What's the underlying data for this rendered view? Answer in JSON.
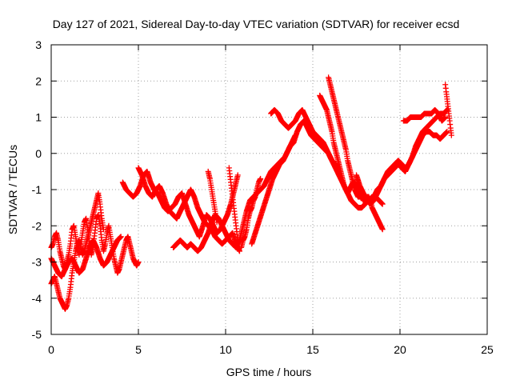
{
  "chart_data": {
    "type": "scatter",
    "title": "Day 127 of 2021, Sidereal Day-to-day VTEC variation (SDTVAR) for receiver ecsd",
    "xlabel": "GPS time / hours",
    "ylabel": "SDTVAR / TECUs",
    "xlim": [
      0,
      25
    ],
    "ylim": [
      -5,
      3
    ],
    "xticks": [
      "0",
      "5",
      "10",
      "15",
      "20",
      "25"
    ],
    "yticks": [
      "-5",
      "-4",
      "-3",
      "-2",
      "-1",
      "0",
      "1",
      "2",
      "3"
    ],
    "grid": true,
    "marker": "+",
    "color": "#ff0000",
    "series": [
      {
        "x": [
          0.0,
          0.1,
          0.2,
          0.3,
          0.4,
          0.5,
          0.6,
          0.7,
          0.8,
          0.9,
          1.0,
          1.1,
          1.2,
          1.3,
          1.4,
          1.5,
          1.6,
          1.7,
          1.8,
          1.9,
          2.0,
          2.1,
          2.2,
          2.3,
          2.4,
          2.5,
          2.6,
          2.7,
          2.8,
          2.9,
          3.0,
          3.1,
          3.2,
          3.3,
          3.4,
          3.5,
          3.6,
          3.7,
          3.8,
          3.9,
          4.0,
          4.1,
          4.2,
          4.3,
          4.4,
          4.5,
          4.6,
          4.7,
          4.8,
          4.9,
          5.0
        ],
        "y": [
          -2.6,
          -2.5,
          -2.3,
          -2.2,
          -2.4,
          -2.7,
          -2.9,
          -3.1,
          -3.2,
          -3.0,
          -2.8,
          -2.5,
          -2.1,
          -2.0,
          -2.3,
          -2.6,
          -2.8,
          -2.5,
          -2.2,
          -1.9,
          -1.8,
          -2.1,
          -2.5,
          -2.8,
          -2.6,
          -2.2,
          -1.8,
          -1.7,
          -2.0,
          -2.4,
          -2.7,
          -2.5,
          -2.2,
          -2.0,
          -2.3,
          -2.6,
          -2.9,
          -3.1,
          -3.3,
          -3.2,
          -3.0,
          -2.8,
          -2.6,
          -2.4,
          -2.3,
          -2.5,
          -2.7,
          -2.9,
          -3.0,
          -3.1,
          -3.0
        ]
      },
      {
        "x": [
          0.0,
          0.1,
          0.2,
          0.3,
          0.4,
          0.5,
          0.6,
          0.7,
          0.8,
          0.9,
          1.0,
          1.1,
          1.2,
          1.3,
          1.4,
          1.5,
          1.6,
          1.7,
          1.8,
          1.9,
          2.0,
          2.1,
          2.2,
          2.3,
          2.4,
          2.5,
          2.6,
          2.7,
          2.8,
          2.9,
          3.0
        ],
        "y": [
          -3.6,
          -3.5,
          -3.4,
          -3.6,
          -3.8,
          -4.0,
          -4.1,
          -4.2,
          -4.3,
          -4.2,
          -4.0,
          -3.7,
          -3.3,
          -3.0,
          -2.7,
          -2.5,
          -2.4,
          -2.6,
          -2.8,
          -2.7,
          -2.5,
          -2.3,
          -2.1,
          -1.9,
          -1.7,
          -1.5,
          -1.3,
          -1.1,
          -1.4,
          -1.8,
          -2.1
        ]
      },
      {
        "x": [
          0.0,
          0.2,
          0.4,
          0.6,
          0.8,
          1.0,
          1.2,
          1.4,
          1.6,
          1.8,
          2.0,
          2.2,
          2.4,
          2.6,
          2.8,
          3.0,
          3.2,
          3.4,
          3.6,
          3.8,
          4.0
        ],
        "y": [
          -2.9,
          -3.1,
          -3.3,
          -3.4,
          -3.2,
          -3.0,
          -2.9,
          -3.1,
          -3.3,
          -3.2,
          -2.9,
          -2.6,
          -2.4,
          -2.6,
          -2.9,
          -3.1,
          -3.0,
          -2.8,
          -2.6,
          -2.4,
          -2.3
        ]
      },
      {
        "x": [
          4.1,
          4.3,
          4.5,
          4.7,
          4.9,
          5.1,
          5.3,
          5.5,
          5.7,
          5.9,
          6.1,
          6.3,
          6.5,
          6.7,
          6.9,
          7.1,
          7.3,
          7.5,
          7.7,
          7.9,
          8.1,
          8.3,
          8.5,
          8.7,
          8.9,
          9.1,
          9.3,
          9.5,
          9.7,
          9.9,
          10.1,
          10.3,
          10.5,
          10.7
        ],
        "y": [
          -0.8,
          -1.0,
          -1.1,
          -1.2,
          -1.1,
          -0.9,
          -0.6,
          -0.5,
          -0.8,
          -1.0,
          -1.1,
          -1.3,
          -1.5,
          -1.6,
          -1.5,
          -1.4,
          -1.2,
          -1.1,
          -1.4,
          -1.7,
          -1.9,
          -2.1,
          -2.3,
          -2.0,
          -1.7,
          -1.8,
          -2.0,
          -2.2,
          -2.1,
          -1.9,
          -1.7,
          -1.4,
          -1.0,
          -0.6
        ]
      },
      {
        "x": [
          5.0,
          5.2,
          5.4,
          5.6,
          5.8,
          6.0,
          6.2,
          6.4,
          6.6,
          6.8,
          7.0,
          7.2,
          7.4,
          7.6,
          7.8,
          8.0,
          8.2,
          8.4,
          8.6,
          8.8,
          9.0,
          9.2,
          9.4,
          9.6,
          9.8,
          10.0,
          10.2,
          10.4,
          10.6,
          10.8
        ],
        "y": [
          -0.4,
          -0.6,
          -0.9,
          -1.1,
          -1.2,
          -1.0,
          -0.9,
          -1.1,
          -1.4,
          -1.6,
          -1.7,
          -1.8,
          -1.6,
          -1.4,
          -1.2,
          -1.0,
          -1.2,
          -1.5,
          -1.7,
          -1.9,
          -2.0,
          -2.1,
          -2.3,
          -2.4,
          -2.5,
          -2.4,
          -2.3,
          -2.2,
          -2.5,
          -2.7
        ]
      },
      {
        "x": [
          7.0,
          7.2,
          7.4,
          7.6,
          7.8,
          8.0,
          8.2,
          8.4,
          8.6,
          8.8,
          9.0,
          9.2,
          9.4,
          9.6,
          9.8,
          10.0,
          10.2,
          10.4,
          10.6,
          10.8,
          11.0,
          11.2,
          11.4,
          11.6,
          11.8,
          12.0,
          12.2,
          12.4,
          12.6,
          12.8,
          13.0,
          13.2,
          13.4,
          13.6,
          13.8,
          14.0
        ],
        "y": [
          -2.6,
          -2.5,
          -2.4,
          -2.5,
          -2.6,
          -2.5,
          -2.6,
          -2.7,
          -2.6,
          -2.4,
          -2.2,
          -1.9,
          -1.7,
          -1.8,
          -2.0,
          -2.2,
          -2.4,
          -2.5,
          -2.6,
          -2.4,
          -2.0,
          -1.6,
          -1.3,
          -1.2,
          -1.1,
          -1.0,
          -0.9,
          -0.7,
          -0.5,
          -0.4,
          -0.3,
          -0.2,
          -0.1,
          0.1,
          0.3,
          0.5
        ]
      },
      {
        "x": [
          9.0,
          9.1,
          9.2,
          9.3,
          9.4,
          9.5
        ],
        "y": [
          -0.5,
          -0.7,
          -1.0,
          -1.3,
          -1.6,
          -1.9
        ]
      },
      {
        "x": [
          10.2,
          10.3,
          10.4,
          10.5,
          10.6,
          10.7
        ],
        "y": [
          -0.4,
          -0.8,
          -1.2,
          -1.6,
          -2.0,
          -2.4
        ]
      },
      {
        "x": [
          10.9,
          11.0,
          11.1,
          11.2,
          11.3,
          11.4,
          11.5,
          11.6,
          11.7,
          11.8,
          11.9,
          12.0
        ],
        "y": [
          -2.6,
          -2.4,
          -2.3,
          -2.1,
          -1.8,
          -1.6,
          -1.5,
          -1.3,
          -1.2,
          -1.0,
          -0.8,
          -0.7
        ]
      },
      {
        "x": [
          11.5,
          11.7,
          11.9,
          12.1,
          12.3,
          12.5,
          12.7,
          12.9,
          13.1,
          13.3,
          13.5,
          13.7,
          13.9,
          14.1,
          14.3,
          14.5,
          14.7,
          14.9,
          15.1,
          15.3,
          15.5,
          15.7,
          15.9,
          16.1,
          16.3,
          16.5
        ],
        "y": [
          -2.5,
          -2.2,
          -1.9,
          -1.6,
          -1.3,
          -1.0,
          -0.7,
          -0.5,
          -0.3,
          -0.2,
          0.0,
          0.2,
          0.3,
          0.6,
          0.8,
          0.9,
          0.7,
          0.5,
          0.4,
          0.3,
          0.2,
          0.1,
          0.0,
          -0.2,
          -0.3,
          -0.6
        ]
      },
      {
        "x": [
          12.6,
          12.8,
          13.0,
          13.2,
          13.4,
          13.6,
          13.8,
          14.0,
          14.2,
          14.4,
          14.6,
          14.8,
          15.0,
          15.2,
          15.4,
          15.6,
          15.8,
          16.0,
          16.2,
          16.4,
          16.6,
          16.8,
          17.0,
          17.2,
          17.4,
          17.6,
          17.8,
          18.0,
          18.2,
          18.4,
          18.6,
          18.8,
          19.0
        ],
        "y": [
          1.1,
          1.2,
          1.1,
          0.9,
          0.8,
          0.7,
          0.8,
          0.9,
          1.1,
          1.2,
          1.0,
          0.8,
          0.6,
          0.5,
          0.4,
          0.3,
          0.1,
          -0.1,
          -0.3,
          -0.5,
          -0.7,
          -0.9,
          -1.1,
          -1.3,
          -1.4,
          -1.5,
          -1.5,
          -1.4,
          -1.3,
          -1.2,
          -1.2,
          -1.3,
          -1.4
        ]
      },
      {
        "x": [
          15.4,
          15.5,
          15.6,
          15.7,
          15.8,
          15.9,
          16.0,
          16.1,
          16.2,
          16.3,
          16.4,
          16.5,
          16.6,
          16.7,
          16.8,
          16.9,
          17.0,
          17.1,
          17.2,
          17.3,
          17.4,
          17.5,
          17.6,
          17.7,
          17.8,
          17.9,
          18.0,
          18.1,
          18.2,
          18.3,
          18.4,
          18.5,
          18.6,
          18.7,
          18.8,
          18.9,
          19.0
        ],
        "y": [
          1.6,
          1.5,
          1.4,
          1.3,
          1.2,
          1.0,
          0.8,
          0.6,
          0.3,
          0.1,
          -0.1,
          -0.3,
          -0.5,
          -0.7,
          -0.9,
          -1.0,
          -1.1,
          -1.0,
          -0.9,
          -0.8,
          -0.8,
          -0.9,
          -1.0,
          -1.1,
          -1.2,
          -1.3,
          -1.3,
          -1.2,
          -1.2,
          -1.3,
          -1.5,
          -1.6,
          -1.7,
          -1.8,
          -1.9,
          -2.0,
          -2.1
        ]
      },
      {
        "x": [
          15.9,
          16.0,
          16.1,
          16.2,
          16.3,
          16.4,
          16.5,
          16.6,
          16.7,
          16.8,
          16.9,
          17.0,
          17.1,
          17.2,
          17.3,
          17.4,
          17.5,
          17.6,
          17.7,
          17.8
        ],
        "y": [
          2.1,
          1.9,
          1.7,
          1.5,
          1.3,
          1.1,
          0.9,
          0.7,
          0.5,
          0.3,
          0.1,
          -0.2,
          -0.4,
          -0.6,
          -0.8,
          -1.0,
          -1.1,
          -1.2,
          -1.2,
          -1.1
        ]
      },
      {
        "x": [
          17.5,
          17.7,
          17.9,
          18.1,
          18.3,
          18.5,
          18.7,
          18.9,
          19.1,
          19.3,
          19.5,
          19.7,
          19.9,
          20.1,
          20.3,
          20.5,
          20.7,
          20.9,
          21.1,
          21.3,
          21.5,
          21.7,
          21.9,
          22.1,
          22.3,
          22.5,
          22.7
        ],
        "y": [
          -0.6,
          -0.9,
          -1.1,
          -1.3,
          -1.4,
          -1.3,
          -1.1,
          -0.9,
          -0.7,
          -0.6,
          -0.5,
          -0.4,
          -0.3,
          -0.4,
          -0.5,
          -0.3,
          -0.1,
          0.2,
          0.4,
          0.6,
          0.7,
          0.8,
          0.9,
          1.0,
          1.1,
          1.1,
          1.2
        ]
      },
      {
        "x": [
          18.5,
          18.7,
          18.9,
          19.1,
          19.3,
          19.5,
          19.7,
          19.9,
          20.1,
          20.3,
          20.5,
          20.7,
          20.9,
          21.1,
          21.3,
          21.5,
          21.7,
          21.9,
          22.1,
          22.3,
          22.5,
          22.7
        ],
        "y": [
          -1.2,
          -1.0,
          -0.9,
          -0.7,
          -0.5,
          -0.4,
          -0.3,
          -0.2,
          -0.3,
          -0.4,
          -0.3,
          -0.1,
          0.1,
          0.3,
          0.5,
          0.6,
          0.6,
          0.5,
          0.5,
          0.4,
          0.5,
          0.6
        ]
      },
      {
        "x": [
          20.2,
          20.4,
          20.6,
          20.8,
          21.0,
          21.2,
          21.4,
          21.6,
          21.8,
          22.0,
          22.2,
          22.4,
          22.6
        ],
        "y": [
          0.9,
          0.9,
          1.0,
          1.0,
          1.0,
          1.0,
          1.1,
          1.1,
          1.1,
          1.2,
          1.1,
          0.9,
          1.0
        ]
      },
      {
        "x": [
          22.6,
          22.65,
          22.7,
          22.75,
          22.8,
          22.85,
          22.9,
          22.95
        ],
        "y": [
          1.9,
          1.7,
          1.5,
          1.3,
          1.1,
          0.9,
          0.7,
          0.5
        ]
      }
    ]
  }
}
